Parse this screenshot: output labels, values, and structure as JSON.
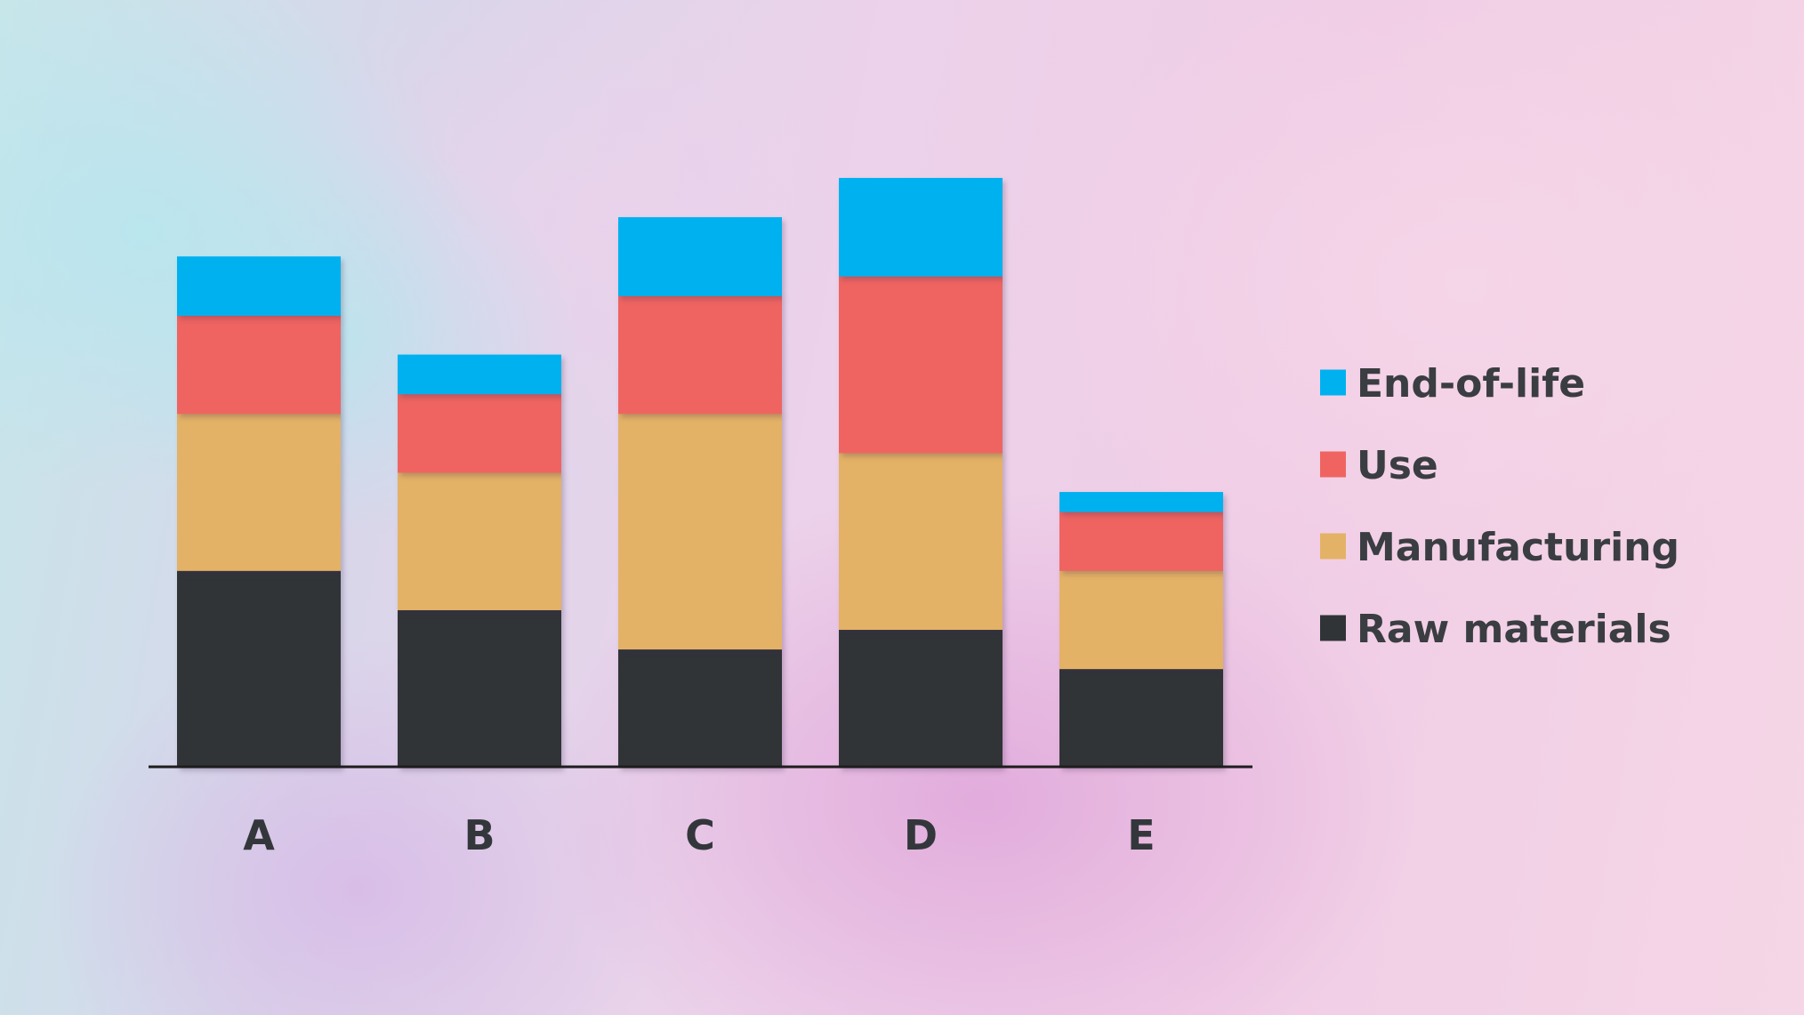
{
  "chart_data": {
    "type": "bar",
    "stacked": true,
    "categories": [
      "A",
      "B",
      "C",
      "D",
      "E"
    ],
    "series": [
      {
        "name": "Raw materials",
        "color": "#303437",
        "values": [
          20,
          16,
          12,
          14,
          10
        ]
      },
      {
        "name": "Manufacturing",
        "color": "#e4b266",
        "values": [
          16,
          14,
          24,
          18,
          10
        ]
      },
      {
        "name": "Use",
        "color": "#ef6461",
        "values": [
          10,
          8,
          12,
          18,
          6
        ]
      },
      {
        "name": "End-of-life",
        "color": "#00b1ef",
        "values": [
          6,
          4,
          8,
          10,
          2
        ]
      }
    ],
    "ylim": [
      0,
      60
    ],
    "grid": false,
    "legend": {
      "placement": "right",
      "order": [
        "End-of-life",
        "Use",
        "Manufacturing",
        "Raw materials"
      ]
    },
    "baseline_color": "#1d1d1d"
  }
}
